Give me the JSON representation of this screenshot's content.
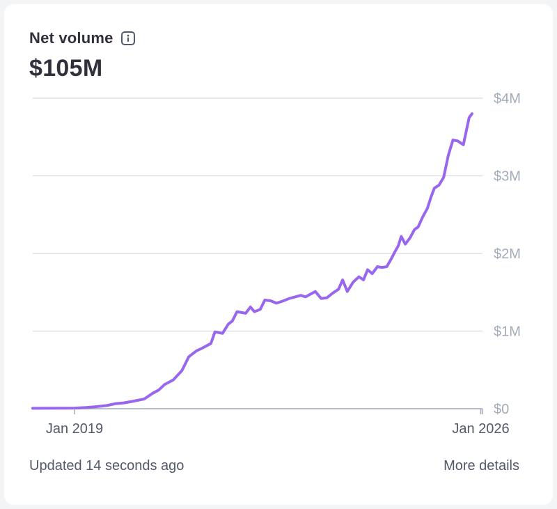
{
  "card": {
    "title": "Net volume",
    "total": "$105M",
    "updated": "Updated 14 seconds ago",
    "more_link": "More details"
  },
  "icons": {
    "info": "info-icon"
  },
  "colors": {
    "line": "#9966ee",
    "grid": "#d9dbe1",
    "axis_label": "#a3acb9"
  },
  "chart_data": {
    "type": "line",
    "title": "",
    "xlabel": "",
    "ylabel": "",
    "x_ticks": [
      {
        "label": "Jan 2019",
        "x": 2019.0
      },
      {
        "label": "Jan 2026",
        "x": 2026.0
      }
    ],
    "y_ticks": [
      {
        "label": "$0",
        "value": 0
      },
      {
        "label": "$1M",
        "value": 1000000
      },
      {
        "label": "$2M",
        "value": 2000000
      },
      {
        "label": "$3M",
        "value": 3000000
      },
      {
        "label": "$4M",
        "value": 4000000
      }
    ],
    "xlim": [
      2018.28,
      2026.03
    ],
    "ylim": [
      0,
      4000000
    ],
    "grid": true,
    "series": [
      {
        "values": [
          [
            2018.28,
            5000
          ],
          [
            2018.6,
            6000
          ],
          [
            2019.0,
            8000
          ],
          [
            2019.2,
            15000
          ],
          [
            2019.35,
            25000
          ],
          [
            2019.55,
            40000
          ],
          [
            2019.7,
            65000
          ],
          [
            2019.85,
            75000
          ],
          [
            2020.0,
            95000
          ],
          [
            2020.2,
            125000
          ],
          [
            2020.35,
            200000
          ],
          [
            2020.45,
            240000
          ],
          [
            2020.55,
            310000
          ],
          [
            2020.7,
            370000
          ],
          [
            2020.85,
            490000
          ],
          [
            2020.97,
            670000
          ],
          [
            2021.1,
            745000
          ],
          [
            2021.2,
            780000
          ],
          [
            2021.35,
            840000
          ],
          [
            2021.42,
            990000
          ],
          [
            2021.55,
            970000
          ],
          [
            2021.65,
            1090000
          ],
          [
            2021.72,
            1130000
          ],
          [
            2021.8,
            1250000
          ],
          [
            2021.95,
            1230000
          ],
          [
            2022.03,
            1310000
          ],
          [
            2022.1,
            1250000
          ],
          [
            2022.2,
            1280000
          ],
          [
            2022.28,
            1400000
          ],
          [
            2022.38,
            1390000
          ],
          [
            2022.48,
            1360000
          ],
          [
            2022.6,
            1390000
          ],
          [
            2022.7,
            1420000
          ],
          [
            2022.8,
            1440000
          ],
          [
            2022.9,
            1460000
          ],
          [
            2022.98,
            1440000
          ],
          [
            2023.15,
            1510000
          ],
          [
            2023.25,
            1420000
          ],
          [
            2023.35,
            1430000
          ],
          [
            2023.45,
            1490000
          ],
          [
            2023.55,
            1540000
          ],
          [
            2023.62,
            1660000
          ],
          [
            2023.7,
            1510000
          ],
          [
            2023.8,
            1630000
          ],
          [
            2023.9,
            1700000
          ],
          [
            2023.98,
            1660000
          ],
          [
            2024.05,
            1790000
          ],
          [
            2024.13,
            1740000
          ],
          [
            2024.22,
            1830000
          ],
          [
            2024.3,
            1820000
          ],
          [
            2024.38,
            1830000
          ],
          [
            2024.45,
            1920000
          ],
          [
            2024.52,
            2020000
          ],
          [
            2024.58,
            2100000
          ],
          [
            2024.63,
            2220000
          ],
          [
            2024.7,
            2120000
          ],
          [
            2024.78,
            2200000
          ],
          [
            2024.86,
            2310000
          ],
          [
            2024.92,
            2340000
          ],
          [
            2025.0,
            2470000
          ],
          [
            2025.08,
            2580000
          ],
          [
            2025.14,
            2720000
          ],
          [
            2025.2,
            2840000
          ],
          [
            2025.28,
            2880000
          ],
          [
            2025.36,
            2980000
          ],
          [
            2025.44,
            3260000
          ],
          [
            2025.52,
            3460000
          ],
          [
            2025.6,
            3450000
          ],
          [
            2025.7,
            3400000
          ],
          [
            2025.8,
            3750000
          ],
          [
            2025.85,
            3800000
          ]
        ]
      }
    ]
  }
}
